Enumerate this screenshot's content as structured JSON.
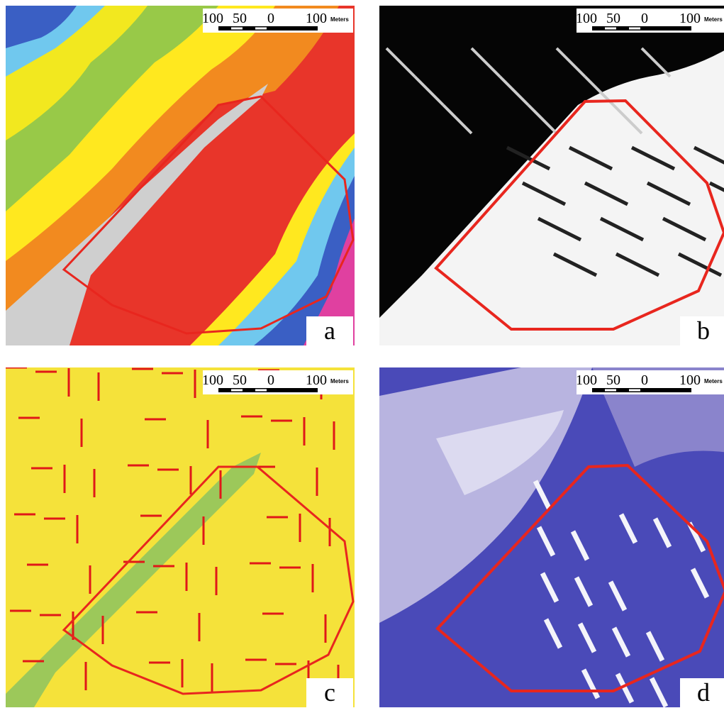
{
  "panels": [
    {
      "label": "a"
    },
    {
      "label": "b"
    },
    {
      "label": "c"
    },
    {
      "label": "d"
    }
  ],
  "scale_bar": {
    "ticks": [
      "100",
      "50",
      "0",
      "100"
    ],
    "unit": "Meters"
  }
}
